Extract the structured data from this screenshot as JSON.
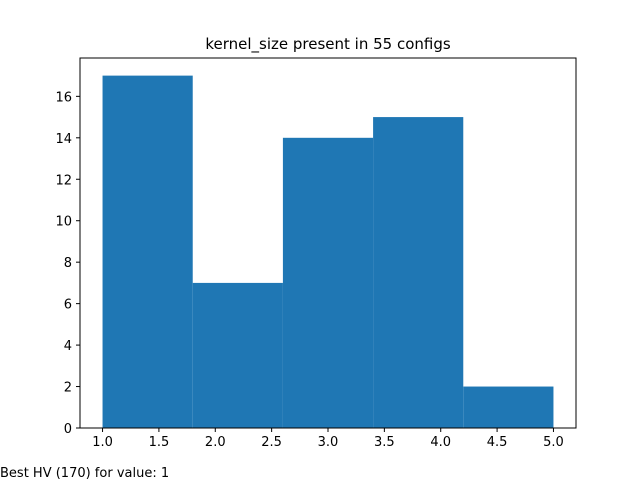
{
  "chart_data": {
    "type": "bar",
    "title": "kernel_size present in 55 configs",
    "xlabel": "",
    "ylabel": "",
    "bins": [
      {
        "x0": 1.0,
        "x1": 1.8,
        "value": 17
      },
      {
        "x0": 1.8,
        "x1": 2.6,
        "value": 7
      },
      {
        "x0": 2.6,
        "x1": 3.4,
        "value": 14
      },
      {
        "x0": 3.4,
        "x1": 4.2,
        "value": 15
      },
      {
        "x0": 4.2,
        "x1": 5.0,
        "value": 2
      }
    ],
    "xlim": [
      0.8,
      5.2
    ],
    "ylim": [
      0,
      17.85
    ],
    "xticks": [
      "1.0",
      "1.5",
      "2.0",
      "2.5",
      "3.0",
      "3.5",
      "4.0",
      "4.5",
      "5.0"
    ],
    "yticks": [
      "0",
      "2",
      "4",
      "6",
      "8",
      "10",
      "12",
      "14",
      "16"
    ],
    "bar_color": "#1f77b4",
    "grid": false,
    "legend": "none"
  },
  "footer": {
    "note": "Best HV (170) for value: 1"
  }
}
